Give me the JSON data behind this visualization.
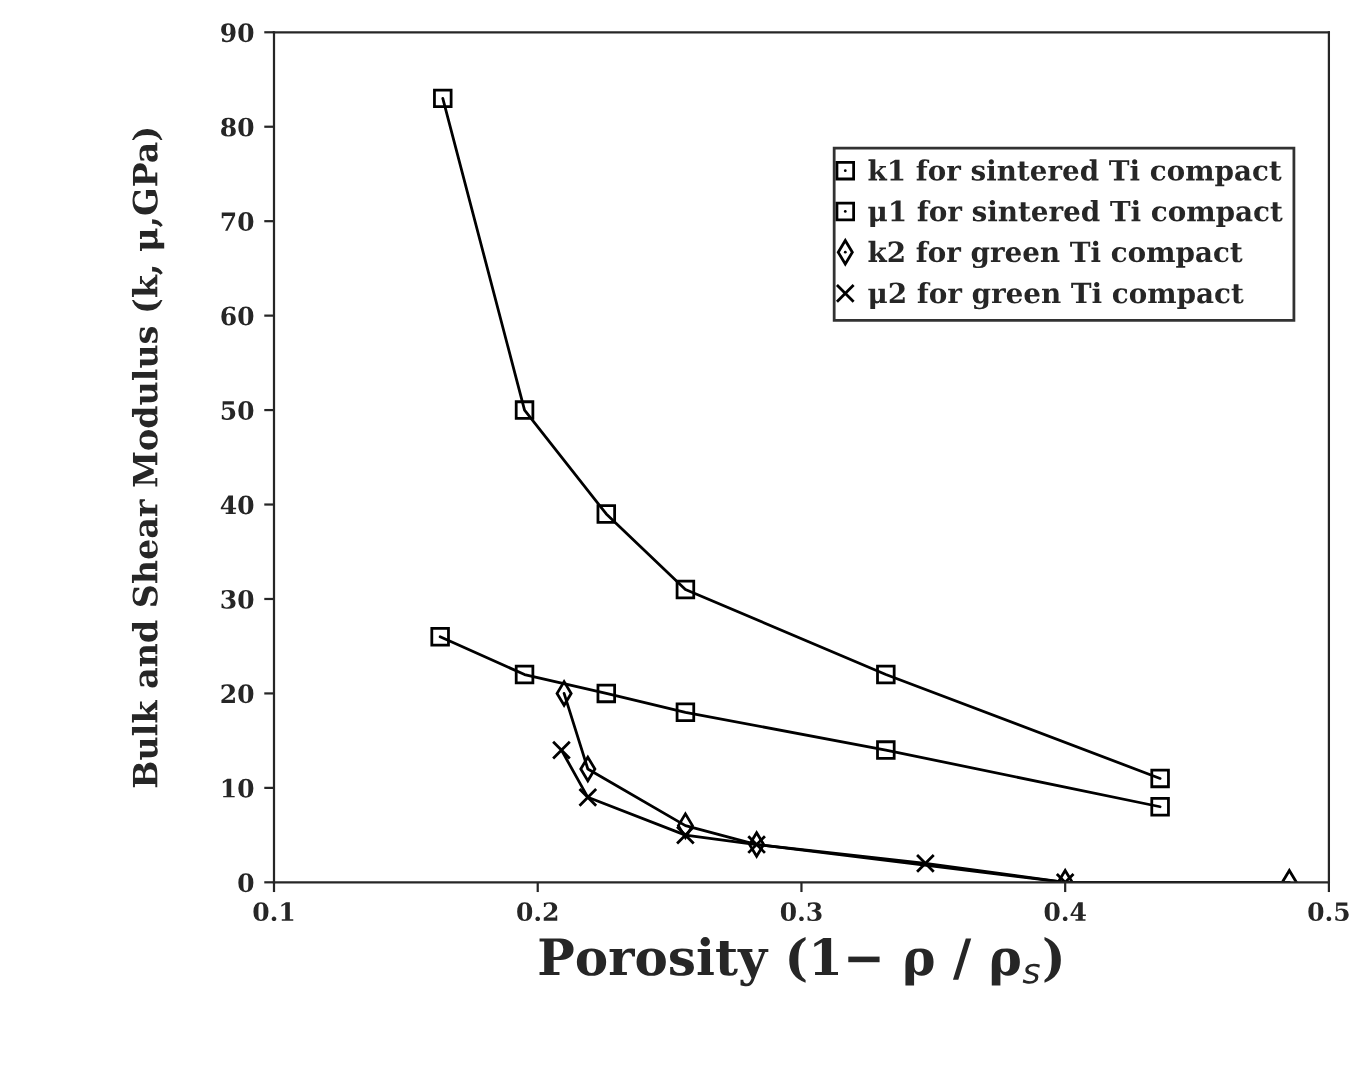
{
  "chart_data": {
    "type": "line",
    "xlabel": "Porosity (1− ρ / ρ$_{s}$)",
    "ylabel": "Bulk and Shear Modulus (k, μ,GPa)",
    "xlim": [
      0.1,
      0.5
    ],
    "xticks": [
      0.1,
      0.2,
      0.3,
      0.4,
      0.5
    ],
    "ylim": [
      0,
      90
    ],
    "yticks": [
      0,
      10,
      20,
      30,
      40,
      50,
      60,
      70,
      80,
      90
    ],
    "grid": false,
    "legend": "top right",
    "series": [
      {
        "name": "k1 for sintered Ti compact",
        "color": "#000000",
        "marker": "square",
        "x": [
          0.164,
          0.195,
          0.226,
          0.256,
          0.332,
          0.436
        ],
        "values": [
          83,
          50,
          39,
          31,
          22,
          11
        ]
      },
      {
        "name": "μ1 for sintered Ti compact",
        "color": "#000000",
        "marker": "square",
        "x": [
          0.163,
          0.195,
          0.226,
          0.256,
          0.332,
          0.436
        ],
        "values": [
          26,
          22,
          20,
          18,
          14,
          8
        ]
      },
      {
        "name": "k2 for green Ti compact",
        "color": "#000000",
        "marker": "diamond",
        "x": [
          0.21,
          0.219,
          0.256,
          0.283,
          0.4,
          0.485
        ],
        "values": [
          20,
          12,
          6,
          4,
          0,
          0
        ]
      },
      {
        "name": "μ2 for green Ti compact",
        "color": "#000000",
        "marker": "cross",
        "x": [
          0.209,
          0.219,
          0.256,
          0.283,
          0.347,
          0.4
        ],
        "values": [
          14,
          9,
          5,
          4,
          2,
          0
        ]
      }
    ]
  }
}
